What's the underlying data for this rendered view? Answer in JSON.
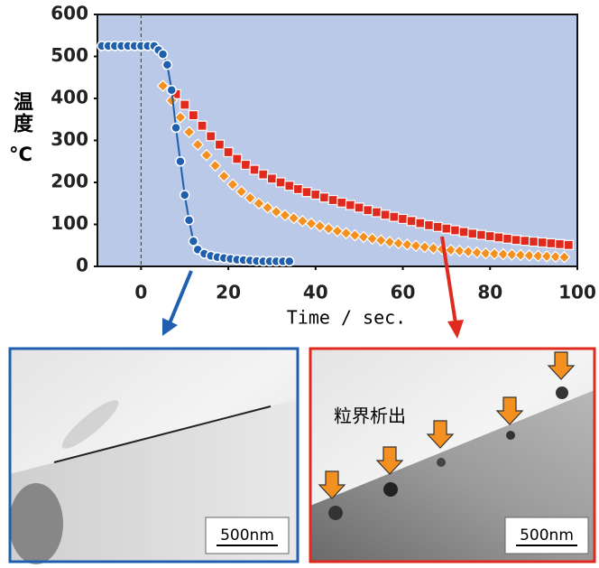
{
  "chart_data": {
    "type": "scatter",
    "ylabel": "温度",
    "yunit": "°C",
    "xlabel": "Time / sec.",
    "xlim": [
      -10,
      100
    ],
    "ylim": [
      0,
      600
    ],
    "xticks": [
      0,
      20,
      40,
      60,
      80,
      100
    ],
    "yticks": [
      0,
      100,
      200,
      300,
      400,
      500,
      600
    ],
    "reference_line_x": 0,
    "series": [
      {
        "color": "#1f5fae",
        "marker": "circle",
        "x": [
          -9,
          -7.5,
          -6,
          -4.5,
          -3,
          -1.5,
          0,
          1.5,
          3,
          4,
          5,
          6,
          7,
          8,
          9,
          10,
          11,
          12,
          13,
          14.5,
          16,
          17.5,
          19,
          20.5,
          22,
          23.5,
          25,
          26.5,
          28,
          29.5,
          31,
          32.5,
          34
        ],
        "values": [
          525,
          525,
          525,
          525,
          525,
          525,
          525,
          525,
          525,
          515,
          505,
          480,
          420,
          330,
          250,
          170,
          110,
          60,
          40,
          30,
          25,
          22,
          20,
          18,
          16,
          15,
          14,
          13,
          12,
          12,
          12,
          12,
          12
        ]
      },
      {
        "color": "#f39020",
        "marker": "diamond",
        "x": [
          5,
          7,
          9,
          11,
          13,
          15,
          17,
          19,
          21,
          23,
          25,
          27,
          29,
          31,
          33,
          35,
          37,
          39,
          41,
          43,
          45,
          47,
          49,
          51,
          53,
          55,
          57,
          59,
          61,
          63,
          65,
          67,
          69,
          71,
          73,
          75,
          77,
          79,
          81,
          83,
          85,
          87,
          89,
          91,
          93,
          95,
          97
        ],
        "values": [
          430,
          395,
          355,
          320,
          290,
          265,
          240,
          215,
          195,
          178,
          163,
          150,
          140,
          130,
          122,
          115,
          108,
          102,
          96,
          90,
          84,
          79,
          74,
          70,
          66,
          62,
          58,
          55,
          52,
          49,
          46,
          43,
          41,
          39,
          37,
          35,
          33,
          31,
          30,
          29,
          28,
          27,
          26,
          25,
          24,
          23,
          22
        ]
      },
      {
        "color": "#e02a1e",
        "marker": "square",
        "x": [
          8,
          10,
          12,
          14,
          16,
          18,
          20,
          22,
          24,
          26,
          28,
          30,
          32,
          34,
          36,
          38,
          40,
          42,
          44,
          46,
          48,
          50,
          52,
          54,
          56,
          58,
          60,
          62,
          64,
          66,
          68,
          70,
          72,
          74,
          76,
          78,
          80,
          82,
          84,
          86,
          88,
          90,
          92,
          94,
          96,
          98
        ],
        "values": [
          410,
          385,
          360,
          335,
          310,
          290,
          272,
          256,
          242,
          230,
          219,
          209,
          200,
          192,
          184,
          177,
          171,
          164,
          158,
          152,
          146,
          140,
          134,
          129,
          123,
          118,
          113,
          108,
          103,
          98,
          94,
          90,
          86,
          82,
          78,
          75,
          72,
          69,
          66,
          63,
          61,
          59,
          57,
          55,
          53,
          51
        ]
      }
    ]
  },
  "panels": [
    {
      "scale_bar": "500nm"
    },
    {
      "label": "粒界析出",
      "scale_bar": "500nm"
    }
  ]
}
